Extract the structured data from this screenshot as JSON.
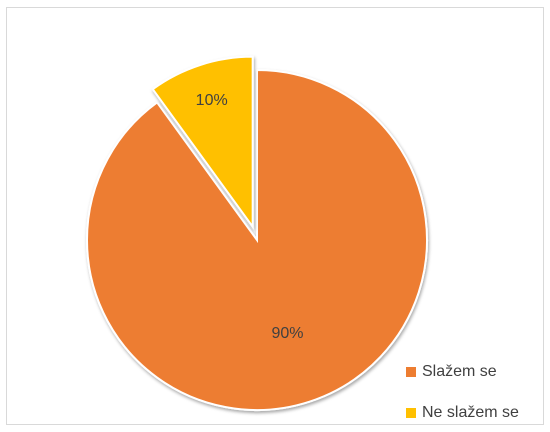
{
  "chart_data": {
    "type": "pie",
    "categories": [
      "Slažem se",
      "Ne slažem se"
    ],
    "values": [
      90,
      10
    ],
    "data_labels": [
      "90%",
      "10%"
    ],
    "colors": [
      "#ED7D31",
      "#FFC000"
    ],
    "exploded": [
      false,
      true
    ],
    "legend_position": "bottom-right",
    "title": ""
  }
}
